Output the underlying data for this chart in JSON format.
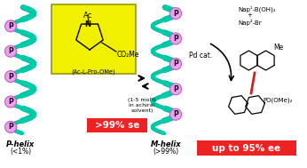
{
  "bg_color": "#ffffff",
  "helix_color": "#00c9a7",
  "p_circle_color": "#f0a0f0",
  "yellow_box_color": "#f0f000",
  "red_box_color": "#ee2222",
  "red_text_color": "#ffffff",
  "black": "#000000",
  "label_p_helix": "P-helix",
  "label_p_pct": "(<1%)",
  "label_m_helix": "M-helix",
  "label_m_pct": "(>99%)",
  "label_se": ">99% se",
  "label_ee": "up to 95% ee",
  "label_nap1": "Nap¹-B(OH)₂",
  "label_plus": "+",
  "label_nap2": "Nap²-Br",
  "label_pd": "Pd cat.",
  "label_achiral": "(1-5 mol%\nin achiral\nsolvent)",
  "label_amino": "(Ac-L-Pro-OMe)",
  "label_ac": "Ac",
  "label_co2me": "CO₂Me",
  "label_me": "Me",
  "label_po": "PO(OMe)₂",
  "label_n": "N"
}
